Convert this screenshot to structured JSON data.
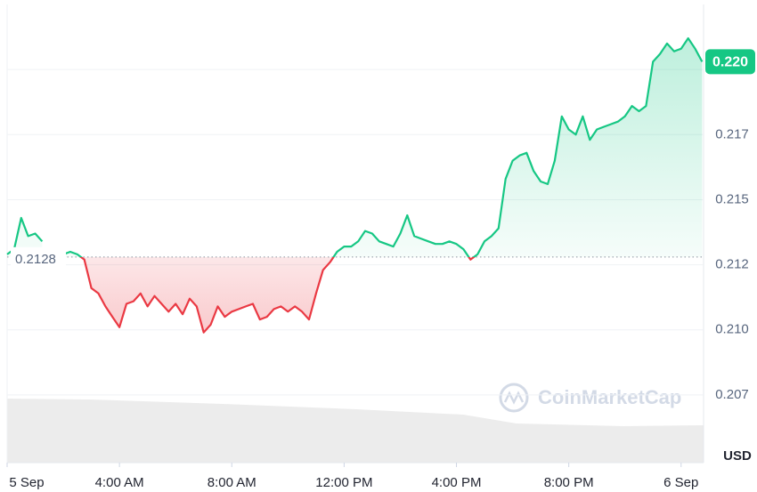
{
  "chart_data": {
    "type": "line",
    "x": [
      0,
      0.25,
      0.5,
      0.75,
      1,
      1.25,
      1.5,
      1.75,
      2,
      2.25,
      2.5,
      2.75,
      3,
      3.25,
      3.5,
      3.75,
      4,
      4.25,
      4.5,
      4.75,
      5,
      5.25,
      5.5,
      5.75,
      6,
      6.25,
      6.5,
      6.75,
      7,
      7.25,
      7.5,
      7.75,
      8,
      8.25,
      8.5,
      8.75,
      9,
      9.25,
      9.5,
      9.75,
      10,
      10.25,
      10.5,
      10.75,
      11,
      11.25,
      11.5,
      11.75,
      12,
      12.25,
      12.5,
      12.75,
      13,
      13.25,
      13.5,
      13.75,
      14,
      14.25,
      14.5,
      14.75,
      15,
      15.25,
      15.5,
      15.75,
      16,
      16.25,
      16.5,
      16.75,
      17,
      17.25,
      17.5,
      17.75,
      18,
      18.25,
      18.5,
      18.75,
      19,
      19.25,
      19.5,
      19.75,
      20,
      20.25,
      20.5,
      20.75,
      21,
      21.25,
      21.5,
      21.75,
      22,
      22.25,
      22.5,
      22.75,
      23,
      23.25,
      23.5,
      23.75,
      24,
      24.25,
      24.5,
      24.75
    ],
    "values": [
      0.2129,
      0.2131,
      0.2143,
      0.2136,
      0.2137,
      0.2134,
      null,
      null,
      0.2129,
      0.213,
      0.2129,
      0.2127,
      0.2116,
      0.2114,
      0.2109,
      0.2105,
      0.2101,
      0.211,
      0.2111,
      0.2114,
      0.2109,
      0.2113,
      0.211,
      0.2107,
      0.211,
      0.2106,
      0.2112,
      0.2109,
      0.2099,
      0.2102,
      0.2109,
      0.2105,
      0.2107,
      0.2108,
      0.2109,
      0.211,
      0.2104,
      0.2105,
      0.2108,
      0.2109,
      0.2107,
      0.2109,
      0.2107,
      0.2104,
      0.2114,
      0.2123,
      0.2126,
      0.213,
      0.2132,
      0.2132,
      0.2134,
      0.2138,
      0.2137,
      0.2134,
      0.2133,
      0.2132,
      0.2137,
      0.2144,
      0.2136,
      0.2135,
      0.2134,
      0.2133,
      0.2133,
      0.2134,
      0.2133,
      0.2131,
      0.2127,
      0.2129,
      0.2134,
      0.2136,
      0.2139,
      0.2158,
      0.2165,
      0.2167,
      0.2168,
      0.2161,
      0.2157,
      0.2156,
      0.2165,
      0.2182,
      0.2177,
      0.2175,
      0.2182,
      0.2173,
      0.2177,
      0.2178,
      0.2179,
      0.218,
      0.2182,
      0.2186,
      0.2184,
      0.2186,
      0.2203,
      0.2206,
      0.221,
      0.2207,
      0.2208,
      0.2212,
      0.2208,
      0.2203
    ],
    "colors": {
      "up": "#16c784",
      "down": "#ea3943"
    },
    "baseline": 0.2128,
    "price_tag": {
      "value": 0.2203,
      "label": "0.220"
    },
    "xlim": [
      0,
      24.8
    ],
    "xticks": [
      {
        "value": 0,
        "label": "5 Sep"
      },
      {
        "value": 4,
        "label": "4:00 AM"
      },
      {
        "value": 8,
        "label": "8:00 AM"
      },
      {
        "value": 12,
        "label": "12:00 PM"
      },
      {
        "value": 16,
        "label": "4:00 PM"
      },
      {
        "value": 20,
        "label": "8:00 PM"
      },
      {
        "value": 24,
        "label": "6 Sep"
      }
    ],
    "ylim": [
      0.2049,
      0.2225
    ],
    "yticks": [
      {
        "value": 0.2075,
        "label": "0.207"
      },
      {
        "value": 0.21,
        "label": "0.210"
      },
      {
        "value": 0.2125,
        "label": "0.212"
      },
      0.215,
      {
        "value": 0.2175,
        "label": "0.217"
      },
      {
        "value": 0.22,
        "label": "0.220"
      }
    ],
    "y_unit": "USD",
    "watermark": "CoinMarketCap",
    "grid": true
  }
}
